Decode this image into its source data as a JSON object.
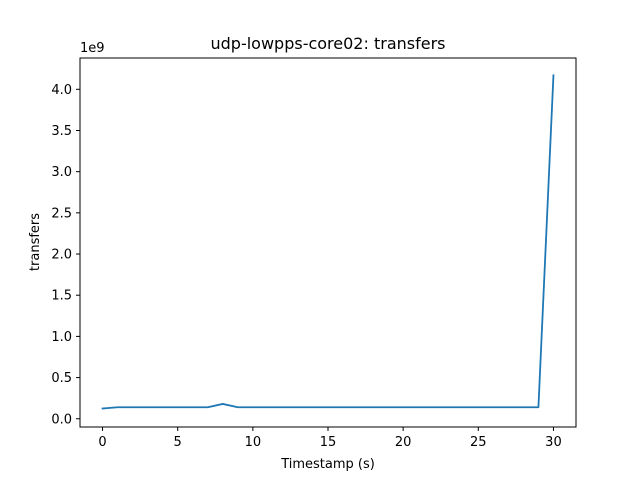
{
  "chart_data": {
    "type": "line",
    "title": "udp-lowpps-core02: transfers",
    "xlabel": "Timestamp (s)",
    "ylabel": "transfers",
    "y_offset_text": "1e9",
    "x_ticks": [
      0,
      5,
      10,
      15,
      20,
      25,
      30
    ],
    "x_tick_labels": [
      "0",
      "5",
      "10",
      "15",
      "20",
      "25",
      "30"
    ],
    "y_ticks": [
      0.0,
      0.5,
      1.0,
      1.5,
      2.0,
      2.5,
      3.0,
      3.5,
      4.0
    ],
    "y_tick_labels": [
      "0.0",
      "0.5",
      "1.0",
      "1.5",
      "2.0",
      "2.5",
      "3.0",
      "3.5",
      "4.0"
    ],
    "xlim": [
      -1.5,
      31.5
    ],
    "ylim": [
      -0.1,
      4.38
    ],
    "grid": false,
    "color": "#1f77b4",
    "series": [
      {
        "x": [
          0,
          1,
          2,
          3,
          4,
          5,
          6,
          7,
          8,
          9,
          10,
          11,
          12,
          13,
          14,
          15,
          16,
          17,
          18,
          19,
          20,
          21,
          22,
          23,
          24,
          25,
          26,
          27,
          28,
          29,
          30
        ],
        "values": [
          0.125,
          0.14,
          0.14,
          0.14,
          0.14,
          0.14,
          0.14,
          0.14,
          0.18,
          0.14,
          0.14,
          0.14,
          0.14,
          0.14,
          0.14,
          0.14,
          0.14,
          0.14,
          0.14,
          0.14,
          0.14,
          0.14,
          0.14,
          0.14,
          0.14,
          0.14,
          0.14,
          0.14,
          0.14,
          0.14,
          4.17
        ]
      }
    ]
  }
}
